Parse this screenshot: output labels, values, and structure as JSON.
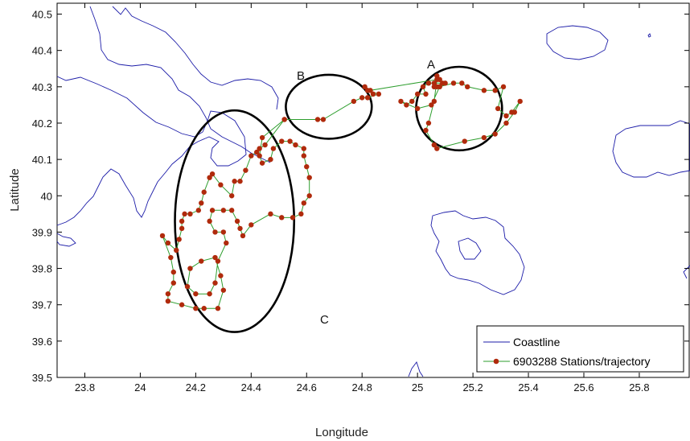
{
  "chart_data": {
    "type": "map",
    "xlabel": "Longitude",
    "ylabel": "Latitude",
    "xlim": [
      23.7,
      25.98
    ],
    "ylim": [
      39.5,
      40.53
    ],
    "xticks": [
      "23.8",
      "24",
      "24.2",
      "24.4",
      "24.6",
      "24.8",
      "25",
      "25.2",
      "25.4",
      "25.6",
      "25.8"
    ],
    "yticks": [
      "39.5",
      "39.6",
      "39.7",
      "39.8",
      "39.9",
      "40",
      "40.1",
      "40.2",
      "40.3",
      "40.4",
      "40.5"
    ],
    "grid": false,
    "legend": {
      "position": "bottom-right",
      "entries": [
        "Coastline",
        "6903288 Stations/trajectory"
      ]
    },
    "colors": {
      "coastline": "#1c1ca8",
      "trajectory_line": "#2e9e2e",
      "station_marker": "#b02a0c",
      "region_ellipse": "#000000"
    },
    "regions": [
      {
        "label": "A",
        "center": [
          25.15,
          40.24
        ],
        "semi_axes": [
          0.155,
          0.115
        ]
      },
      {
        "label": "B",
        "center": [
          24.68,
          40.245
        ],
        "semi_axes": [
          0.155,
          0.088
        ]
      },
      {
        "label": "C",
        "center": [
          24.34,
          39.93
        ],
        "semi_axes": [
          0.215,
          0.305
        ]
      }
    ],
    "stations": [
      [
        25.07,
        40.33
      ],
      [
        25.06,
        40.31
      ],
      [
        25.08,
        40.32
      ],
      [
        25.09,
        40.31
      ],
      [
        25.06,
        40.3
      ],
      [
        25.07,
        40.3
      ],
      [
        25.1,
        40.31
      ],
      [
        25.04,
        40.31
      ],
      [
        25.02,
        40.3
      ],
      [
        25.03,
        40.28
      ],
      [
        25.0,
        40.28
      ],
      [
        24.98,
        40.26
      ],
      [
        24.96,
        40.25
      ],
      [
        24.94,
        40.26
      ],
      [
        25.0,
        40.24
      ],
      [
        25.05,
        40.25
      ],
      [
        25.08,
        40.3
      ],
      [
        25.13,
        40.31
      ],
      [
        25.16,
        40.31
      ],
      [
        25.18,
        40.3
      ],
      [
        25.24,
        40.29
      ],
      [
        25.28,
        40.29
      ],
      [
        25.31,
        40.3
      ],
      [
        25.29,
        40.24
      ],
      [
        25.32,
        40.22
      ],
      [
        25.34,
        40.23
      ],
      [
        25.37,
        40.26
      ],
      [
        25.35,
        40.23
      ],
      [
        25.32,
        40.2
      ],
      [
        25.28,
        40.17
      ],
      [
        25.24,
        40.16
      ],
      [
        25.17,
        40.15
      ],
      [
        25.07,
        40.13
      ],
      [
        25.06,
        40.14
      ],
      [
        25.03,
        40.18
      ],
      [
        25.04,
        40.2
      ],
      [
        25.06,
        40.26
      ],
      [
        25.07,
        40.32
      ],
      [
        24.83,
        40.29
      ],
      [
        24.81,
        40.3
      ],
      [
        24.84,
        40.28
      ],
      [
        24.82,
        40.29
      ],
      [
        24.86,
        40.28
      ],
      [
        24.82,
        40.27
      ],
      [
        24.8,
        40.27
      ],
      [
        24.77,
        40.26
      ],
      [
        24.66,
        40.21
      ],
      [
        24.64,
        40.21
      ],
      [
        24.52,
        40.21
      ],
      [
        24.45,
        40.14
      ],
      [
        24.43,
        40.13
      ],
      [
        24.42,
        40.12
      ],
      [
        24.4,
        40.11
      ],
      [
        24.38,
        40.07
      ],
      [
        24.36,
        40.04
      ],
      [
        24.34,
        40.04
      ],
      [
        24.33,
        40.0
      ],
      [
        24.29,
        40.03
      ],
      [
        24.26,
        40.06
      ],
      [
        24.25,
        40.05
      ],
      [
        24.23,
        40.01
      ],
      [
        24.22,
        39.98
      ],
      [
        24.21,
        39.96
      ],
      [
        24.18,
        39.95
      ],
      [
        24.16,
        39.95
      ],
      [
        24.15,
        39.93
      ],
      [
        24.15,
        39.91
      ],
      [
        24.14,
        39.88
      ],
      [
        24.13,
        39.85
      ],
      [
        24.1,
        39.87
      ],
      [
        24.08,
        39.89
      ],
      [
        24.11,
        39.83
      ],
      [
        24.12,
        39.79
      ],
      [
        24.12,
        39.76
      ],
      [
        24.1,
        39.73
      ],
      [
        24.1,
        39.71
      ],
      [
        24.15,
        39.7
      ],
      [
        24.2,
        39.69
      ],
      [
        24.23,
        39.69
      ],
      [
        24.28,
        39.69
      ],
      [
        24.3,
        39.74
      ],
      [
        24.29,
        39.78
      ],
      [
        24.27,
        39.83
      ],
      [
        24.22,
        39.82
      ],
      [
        24.18,
        39.8
      ],
      [
        24.17,
        39.75
      ],
      [
        24.2,
        39.73
      ],
      [
        24.25,
        39.73
      ],
      [
        24.27,
        39.76
      ],
      [
        24.28,
        39.82
      ],
      [
        24.31,
        39.87
      ],
      [
        24.3,
        39.9
      ],
      [
        24.27,
        39.9
      ],
      [
        24.25,
        39.93
      ],
      [
        24.26,
        39.96
      ],
      [
        24.3,
        39.96
      ],
      [
        24.33,
        39.96
      ],
      [
        24.35,
        39.93
      ],
      [
        24.36,
        39.91
      ],
      [
        24.37,
        39.89
      ],
      [
        24.4,
        39.92
      ],
      [
        24.47,
        39.95
      ],
      [
        24.51,
        39.94
      ],
      [
        24.55,
        39.94
      ],
      [
        24.58,
        39.95
      ],
      [
        24.59,
        39.98
      ],
      [
        24.61,
        40.0
      ],
      [
        24.61,
        40.05
      ],
      [
        24.6,
        40.08
      ],
      [
        24.59,
        40.11
      ],
      [
        24.59,
        40.13
      ],
      [
        24.56,
        40.14
      ],
      [
        24.54,
        40.15
      ],
      [
        24.51,
        40.15
      ],
      [
        24.48,
        40.13
      ],
      [
        24.47,
        40.1
      ],
      [
        24.44,
        40.09
      ],
      [
        24.43,
        40.11
      ],
      [
        24.44,
        40.16
      ],
      [
        24.52,
        40.21
      ]
    ]
  },
  "labels": {
    "legend_coastline": "Coastline",
    "legend_trajectory": "6903288 Stations/trajectory",
    "region_a": "A",
    "region_b": "B",
    "region_c": "C"
  }
}
